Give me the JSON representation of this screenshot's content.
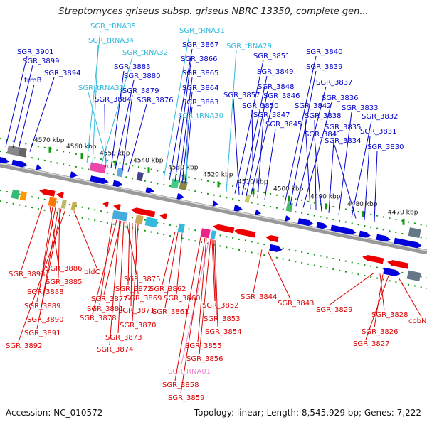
{
  "title": "Streptomyces griseus subsp. griseus NBRC 13350, complete gen...",
  "footer": {
    "accession": "Accession: NC_010572",
    "summary": "Topology: linear; Length: 8,545,929 bp; Genes: 7,222"
  },
  "colors": {
    "top_gene": "#0000cc",
    "top_rna": "#33bbdd",
    "bottom_gene": "#dd0000",
    "bottom_rna": "#ee88cc"
  },
  "ruler": [
    "4570 kbp",
    "4560 kbp",
    "4550 kbp",
    "4540 kbp",
    "4530 kbp",
    "4520 kbp",
    "4510 kbp",
    "4500 kbp",
    "4490 kbp",
    "4480 kbp",
    "4470 kbp"
  ],
  "top_labels": [
    {
      "text": "SGR_3901",
      "kind": "gene"
    },
    {
      "text": "SGR_3899",
      "kind": "gene"
    },
    {
      "text": "trmB",
      "kind": "gene"
    },
    {
      "text": "SGR_3894",
      "kind": "gene"
    },
    {
      "text": "SGR_tRNA35",
      "kind": "rna"
    },
    {
      "text": "SGR_tRNA34",
      "kind": "rna"
    },
    {
      "text": "SGR_tRNA32",
      "kind": "rna"
    },
    {
      "text": "SGR_3883",
      "kind": "gene"
    },
    {
      "text": "SGR_3880",
      "kind": "gene"
    },
    {
      "text": "SGR_tRNA33",
      "kind": "rna"
    },
    {
      "text": "SGR_3879",
      "kind": "gene"
    },
    {
      "text": "SGR_3884",
      "kind": "gene"
    },
    {
      "text": "SGR_3876",
      "kind": "gene"
    },
    {
      "text": "SGR_tRNA31",
      "kind": "rna"
    },
    {
      "text": "SGR_3867",
      "kind": "gene"
    },
    {
      "text": "SGR_3866",
      "kind": "gene"
    },
    {
      "text": "SGR_3865",
      "kind": "gene"
    },
    {
      "text": "SGR_3864",
      "kind": "gene"
    },
    {
      "text": "SGR_3863",
      "kind": "gene"
    },
    {
      "text": "SGR_tRNA30",
      "kind": "rna"
    },
    {
      "text": "SGR_tRNA29",
      "kind": "rna"
    },
    {
      "text": "SGR_3851",
      "kind": "gene"
    },
    {
      "text": "SGR_3849",
      "kind": "gene"
    },
    {
      "text": "SGR_3848",
      "kind": "gene"
    },
    {
      "text": "SGR_3857",
      "kind": "gene"
    },
    {
      "text": "SGR_3846",
      "kind": "gene"
    },
    {
      "text": "SGR_3850",
      "kind": "gene"
    },
    {
      "text": "SGR_3847",
      "kind": "gene"
    },
    {
      "text": "SGR_3845",
      "kind": "gene"
    },
    {
      "text": "SGR_3840",
      "kind": "gene"
    },
    {
      "text": "SGR_3839",
      "kind": "gene"
    },
    {
      "text": "SGR_3837",
      "kind": "gene"
    },
    {
      "text": "SGR_3836",
      "kind": "gene"
    },
    {
      "text": "SGR_3842",
      "kind": "gene"
    },
    {
      "text": "SGR_3838",
      "kind": "gene"
    },
    {
      "text": "SGR_3841",
      "kind": "gene"
    },
    {
      "text": "SGR_3835",
      "kind": "gene"
    },
    {
      "text": "SGR_3833",
      "kind": "gene"
    },
    {
      "text": "SGR_3832",
      "kind": "gene"
    },
    {
      "text": "SGR_3834",
      "kind": "gene"
    },
    {
      "text": "SGR_3831",
      "kind": "gene"
    },
    {
      "text": "SGR_3830",
      "kind": "gene"
    }
  ],
  "bottom_labels": [
    {
      "text": "SGR_3893",
      "kind": "gene"
    },
    {
      "text": "SGR_3886",
      "kind": "gene"
    },
    {
      "text": "SGR_3885",
      "kind": "gene"
    },
    {
      "text": "bldC",
      "kind": "gene"
    },
    {
      "text": "SGR_3888",
      "kind": "gene"
    },
    {
      "text": "SGR_3889",
      "kind": "gene"
    },
    {
      "text": "SGR_3890",
      "kind": "gene"
    },
    {
      "text": "SGR_3891",
      "kind": "gene"
    },
    {
      "text": "SGR_3892",
      "kind": "gene"
    },
    {
      "text": "SGR_3875",
      "kind": "gene"
    },
    {
      "text": "SGR_3872",
      "kind": "gene"
    },
    {
      "text": "SGR_3877",
      "kind": "gene"
    },
    {
      "text": "SGR_3869",
      "kind": "gene"
    },
    {
      "text": "SGR_3881",
      "kind": "gene"
    },
    {
      "text": "SGR_3871",
      "kind": "gene"
    },
    {
      "text": "SGR_3878",
      "kind": "gene"
    },
    {
      "text": "SGR_3870",
      "kind": "gene"
    },
    {
      "text": "SGR_3873",
      "kind": "gene"
    },
    {
      "text": "SGR_3874",
      "kind": "gene"
    },
    {
      "text": "SGR_3862",
      "kind": "gene"
    },
    {
      "text": "SGR_3860",
      "kind": "gene"
    },
    {
      "text": "SGR_3861",
      "kind": "gene"
    },
    {
      "text": "SGR_3852",
      "kind": "gene"
    },
    {
      "text": "SGR_3853",
      "kind": "gene"
    },
    {
      "text": "SGR_3854",
      "kind": "gene"
    },
    {
      "text": "SGR_3855",
      "kind": "gene"
    },
    {
      "text": "SGR_3856",
      "kind": "gene"
    },
    {
      "text": "SGR_RNA01",
      "kind": "rna"
    },
    {
      "text": "SGR_3858",
      "kind": "gene"
    },
    {
      "text": "SGR_3859",
      "kind": "gene"
    },
    {
      "text": "SGR_3844",
      "kind": "gene"
    },
    {
      "text": "SGR_3843",
      "kind": "gene"
    },
    {
      "text": "SGR_3829",
      "kind": "gene"
    },
    {
      "text": "SGR_3828",
      "kind": "gene"
    },
    {
      "text": "SGR_3826",
      "kind": "gene"
    },
    {
      "text": "SGR_3827",
      "kind": "gene"
    },
    {
      "text": "cobN",
      "kind": "gene"
    }
  ]
}
